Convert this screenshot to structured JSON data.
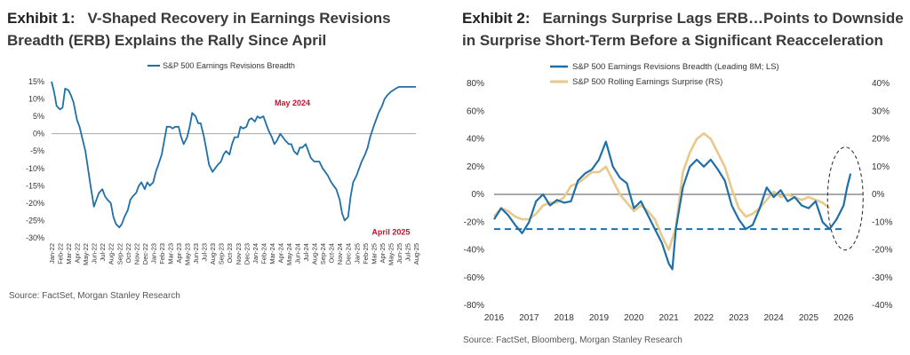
{
  "exhibit1": {
    "title_num": "Exhibit 1:",
    "title_text": "V-Shaped Recovery in Earnings Revisions Breadth (ERB) Explains the Rally Since April",
    "source": "Source: FactSet, Morgan Stanley Research"
  },
  "exhibit2": {
    "title_num": "Exhibit 2:",
    "title_text": "Earnings Surprise Lags ERB…Points to Downside in Surprise Short-Term Before a Significant Reacceleration",
    "source": "Source: FactSet, Bloomberg, Morgan Stanley Research"
  },
  "colors": {
    "erb": "#1f6fa8",
    "surprise": "#e8c98a",
    "annotation": "#c8102e",
    "zero": "#555555",
    "threshold": "#1f6fa8"
  },
  "chart_data": [
    {
      "type": "line",
      "legend": [
        "S&P 500 Earnings Revisions Breadth"
      ],
      "ylim": [
        -30,
        15
      ],
      "yticks": [
        "15%",
        "10%",
        "5%",
        "0%",
        "-5%",
        "-10%",
        "-15%",
        "-20%",
        "-25%",
        "-30%"
      ],
      "ytick_values": [
        15,
        10,
        5,
        0,
        -5,
        -10,
        -15,
        -20,
        -25,
        -30
      ],
      "categories": [
        "Jan-22",
        "Feb-22",
        "Mar-22",
        "Apr-22",
        "May-22",
        "Jun-22",
        "Jul-22",
        "Aug-22",
        "Sep-22",
        "Oct-22",
        "Nov-22",
        "Dec-22",
        "Jan-23",
        "Feb-23",
        "Mar-23",
        "Apr-23",
        "May-23",
        "Jun-23",
        "Jul-23",
        "Aug-23",
        "Sep-23",
        "Oct-23",
        "Nov-23",
        "Dec-23",
        "Jan-24",
        "Feb-24",
        "Mar-24",
        "Apr-24",
        "May-24",
        "Jun-24",
        "Jul-24",
        "Aug-24",
        "Sep-24",
        "Oct-24",
        "Nov-24",
        "Dec-24",
        "Jan-25",
        "Feb-25",
        "Mar-25",
        "Apr-25",
        "May-25",
        "Jun-25",
        "Jul-25",
        "Aug-25"
      ],
      "series": [
        {
          "name": "S&P 500 Earnings Revisions Breadth",
          "x": [
            0,
            0.3,
            0.6,
            1,
            1.3,
            1.6,
            2,
            2.3,
            2.6,
            3,
            3.3,
            3.6,
            4,
            4.3,
            4.6,
            5,
            5.3,
            5.6,
            6,
            6.3,
            6.6,
            7,
            7.3,
            7.6,
            8,
            8.3,
            8.6,
            9,
            9.3,
            9.6,
            10,
            10.3,
            10.6,
            11,
            11.3,
            11.6,
            12,
            12.3,
            12.6,
            13,
            13.3,
            13.6,
            14,
            14.3,
            14.6,
            15,
            15.3,
            15.6,
            16,
            16.3,
            16.6,
            17,
            17.3,
            17.6,
            18,
            18.3,
            18.6,
            19,
            19.3,
            19.6,
            20,
            20.3,
            20.6,
            21,
            21.3,
            21.6,
            22,
            22.3,
            22.6,
            23,
            23.3,
            23.6,
            24,
            24.3,
            24.6,
            25,
            25.3,
            25.6,
            26,
            26.3,
            26.6,
            27,
            27.3,
            27.6,
            28,
            28.3,
            28.6,
            29,
            29.3,
            29.6,
            30,
            30.3,
            30.6,
            31,
            31.3,
            31.6,
            32,
            32.3,
            32.6,
            33,
            33.3,
            33.6,
            34,
            34.3,
            34.6,
            35,
            35.3,
            35.6,
            36,
            36.3,
            36.6,
            37,
            37.3,
            37.6,
            38,
            38.3,
            38.6,
            39,
            39.3,
            39.6,
            40,
            40.3,
            40.6,
            41,
            41.3,
            41.6,
            42,
            42.3,
            42.6,
            43
          ],
          "values": [
            15,
            12,
            8,
            7,
            7.5,
            13,
            12.5,
            11,
            9,
            4,
            2,
            -1,
            -5,
            -10,
            -15,
            -21,
            -19,
            -17,
            -16,
            -18,
            -19,
            -20,
            -24,
            -26,
            -27,
            -26,
            -24,
            -22,
            -19,
            -18,
            -17,
            -15,
            -14,
            -16,
            -14,
            -15,
            -14,
            -11,
            -9,
            -6,
            -2,
            2,
            2,
            1.5,
            2,
            2,
            -1,
            -3,
            -1,
            2,
            6,
            5,
            3,
            3,
            -1,
            -5,
            -9,
            -11,
            -10,
            -9,
            -8,
            -6,
            -5,
            -6,
            -3,
            -1,
            -1,
            2,
            1.5,
            2,
            4,
            4.5,
            3.5,
            5,
            4.5,
            5,
            3,
            1,
            -1,
            -3,
            -2,
            0,
            -1,
            -2,
            -3,
            -3,
            -5,
            -6,
            -4,
            -4,
            -3,
            -5,
            -7,
            -8,
            -8,
            -8,
            -10,
            -11,
            -12,
            -14,
            -15,
            -16,
            -19,
            -23,
            -25,
            -24,
            -18,
            -14,
            -12,
            -10,
            -8,
            -6,
            -4,
            -1,
            2,
            4,
            6,
            8,
            10,
            11,
            12,
            12.5,
            13,
            13.5,
            13.5,
            13.5,
            13.5,
            13.5,
            13.5,
            13.5
          ]
        }
      ],
      "annotations": [
        {
          "text": "May 2024",
          "x": 28,
          "y": 5
        },
        {
          "text": "April 2025",
          "x": 39,
          "y": -25
        }
      ]
    },
    {
      "type": "line",
      "legend": [
        "S&P 500 Earnings Revisions Breadth (Leading 8M; LS)",
        "S&P 500 Rolling Earnings Surprise (RS)"
      ],
      "x_ticks": [
        "2016",
        "2017",
        "2018",
        "2019",
        "2020",
        "2021",
        "2022",
        "2023",
        "2024",
        "2025",
        "2026"
      ],
      "x_tick_values": [
        2016,
        2017,
        2018,
        2019,
        2020,
        2021,
        2022,
        2023,
        2024,
        2025,
        2026
      ],
      "xlim": [
        2016,
        2026.4
      ],
      "ylim_left": [
        -80,
        80
      ],
      "ylim_right": [
        -40,
        40
      ],
      "yticks_left": [
        "80%",
        "60%",
        "40%",
        "20%",
        "0%",
        "-20%",
        "-40%",
        "-60%",
        "-80%"
      ],
      "ytick_values_left": [
        80,
        60,
        40,
        20,
        0,
        -20,
        -40,
        -60,
        -80
      ],
      "yticks_right": [
        "40%",
        "30%",
        "20%",
        "10%",
        "0%",
        "-10%",
        "-20%",
        "-30%",
        "-40%"
      ],
      "ytick_values_right": [
        40,
        30,
        20,
        10,
        0,
        -10,
        -20,
        -30,
        -40
      ],
      "threshold_left": -25,
      "series": [
        {
          "name": "S&P 500 Earnings Revisions Breadth (Leading 8M; LS)",
          "axis": "left",
          "x": [
            2016,
            2016.2,
            2016.4,
            2016.6,
            2016.8,
            2017,
            2017.2,
            2017.4,
            2017.6,
            2017.8,
            2018,
            2018.2,
            2018.4,
            2018.6,
            2018.8,
            2019,
            2019.2,
            2019.4,
            2019.6,
            2019.8,
            2020,
            2020.2,
            2020.4,
            2020.6,
            2020.8,
            2021,
            2021.1,
            2021.2,
            2021.4,
            2021.6,
            2021.8,
            2022,
            2022.2,
            2022.4,
            2022.6,
            2022.8,
            2023,
            2023.2,
            2023.4,
            2023.6,
            2023.8,
            2024,
            2024.2,
            2024.4,
            2024.6,
            2024.8,
            2025,
            2025.2,
            2025.4,
            2025.6,
            2025.8,
            2026,
            2026.1,
            2026.2
          ],
          "values": [
            -18,
            -10,
            -15,
            -22,
            -28,
            -20,
            -5,
            0,
            -8,
            -4,
            -6,
            -5,
            10,
            15,
            18,
            25,
            38,
            20,
            12,
            8,
            -10,
            -5,
            -15,
            -25,
            -35,
            -50,
            -54,
            -25,
            5,
            20,
            25,
            20,
            25,
            18,
            10,
            -8,
            -18,
            -25,
            -22,
            -10,
            5,
            -2,
            3,
            -5,
            -2,
            -8,
            -10,
            -5,
            -20,
            -25,
            -18,
            -8,
            5,
            15
          ]
        },
        {
          "name": "S&P 500 Rolling Earnings Surprise (RS)",
          "axis": "right",
          "x": [
            2016,
            2016.2,
            2016.4,
            2016.6,
            2016.8,
            2017,
            2017.2,
            2017.4,
            2017.6,
            2017.8,
            2018,
            2018.2,
            2018.4,
            2018.6,
            2018.8,
            2019,
            2019.2,
            2019.4,
            2019.6,
            2019.8,
            2020,
            2020.2,
            2020.4,
            2020.6,
            2020.8,
            2021,
            2021.2,
            2021.4,
            2021.6,
            2021.8,
            2022,
            2022.2,
            2022.4,
            2022.6,
            2022.8,
            2023,
            2023.2,
            2023.4,
            2023.6,
            2023.8,
            2024,
            2024.2,
            2024.4,
            2024.6,
            2024.8,
            2025,
            2025.2,
            2025.4,
            2025.6
          ],
          "values": [
            -8,
            -5,
            -6,
            -8,
            -9,
            -9,
            -7,
            -4,
            -3,
            -3,
            -1,
            3,
            4,
            6,
            8,
            8,
            10,
            5,
            0,
            -3,
            -6,
            -4,
            -6,
            -9,
            -15,
            -20,
            -12,
            8,
            15,
            20,
            22,
            20,
            15,
            10,
            2,
            -5,
            -8,
            -7,
            -5,
            -2,
            1,
            -1,
            0,
            -1,
            -2,
            -1,
            -2,
            -3,
            -5
          ]
        }
      ]
    }
  ]
}
